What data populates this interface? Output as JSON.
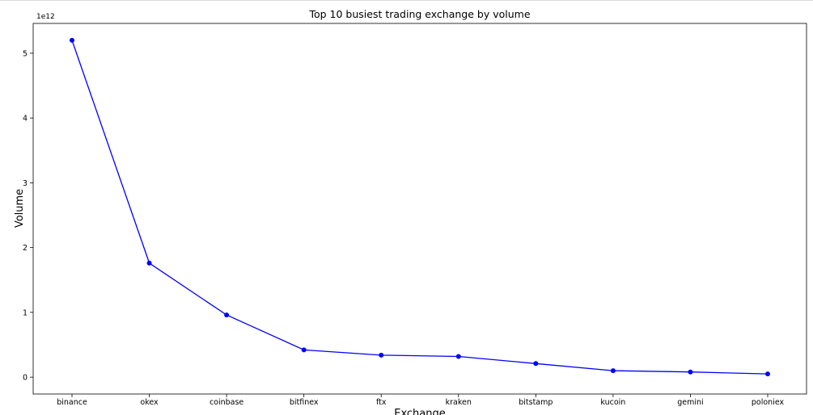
{
  "chart_data": {
    "type": "line",
    "title": "Top 10 busiest trading exchange by volume",
    "xlabel": "Exchange",
    "ylabel": "Volume",
    "y_offset_label": "1e12",
    "categories": [
      "binance",
      "okex",
      "coinbase",
      "bitfinex",
      "ftx",
      "kraken",
      "bitstamp",
      "kucoin",
      "gemini",
      "poloniex"
    ],
    "series": [
      {
        "values": [
          5200000000000.0,
          1760000000000.0,
          960000000000.0,
          420000000000.0,
          340000000000.0,
          320000000000.0,
          210000000000.0,
          100000000000.0,
          80000000000.0,
          50000000000.0
        ],
        "color": "#0000ff",
        "marker": "circle"
      }
    ],
    "yticks": [
      0,
      1,
      2,
      3,
      4,
      5
    ],
    "ylim": [
      -260000000000.0,
      5460000000000.0
    ],
    "grid": false,
    "legend": "none"
  }
}
